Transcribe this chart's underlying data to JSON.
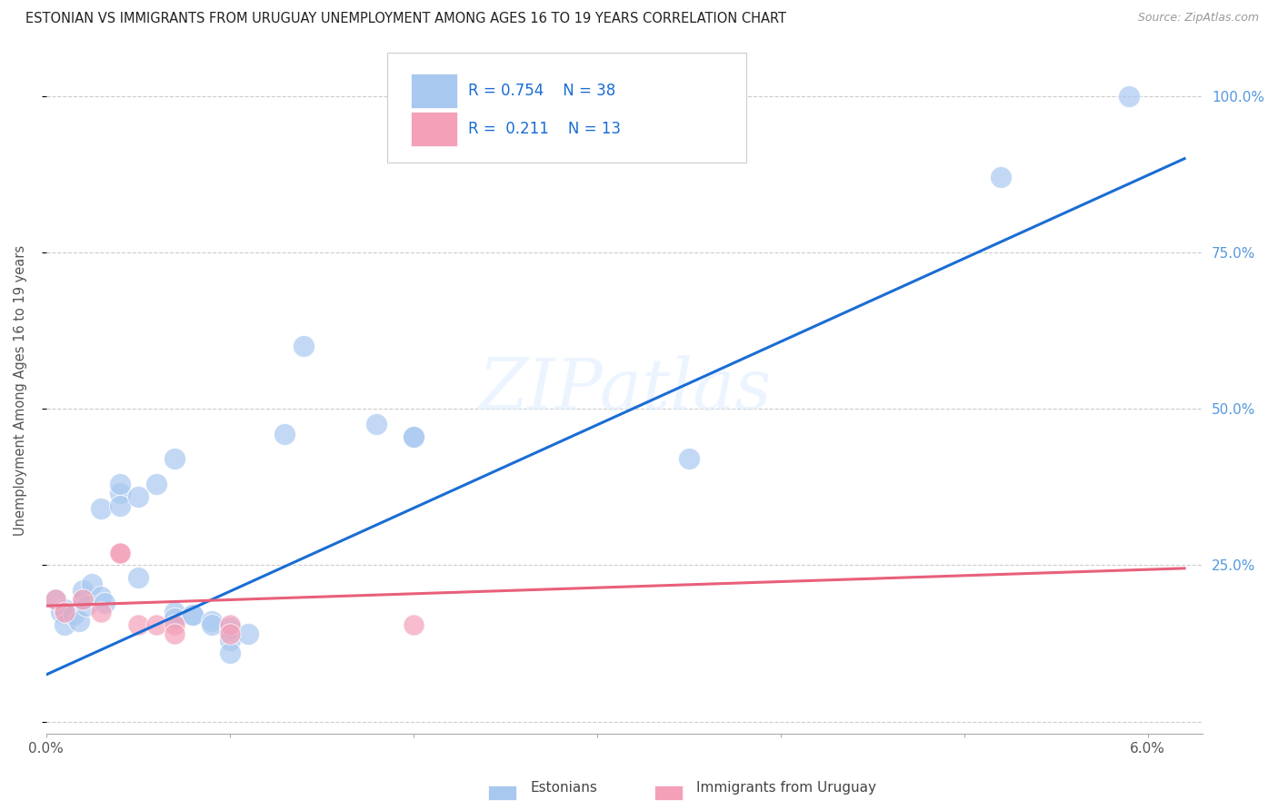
{
  "title": "ESTONIAN VS IMMIGRANTS FROM URUGUAY UNEMPLOYMENT AMONG AGES 16 TO 19 YEARS CORRELATION CHART",
  "source": "Source: ZipAtlas.com",
  "ylabel": "Unemployment Among Ages 16 to 19 years",
  "legend_label1": "Estonians",
  "legend_label2": "Immigrants from Uruguay",
  "r1": 0.754,
  "n1": 38,
  "r2": 0.211,
  "n2": 13,
  "color_blue": "#a8c8f0",
  "color_pink": "#f4a0b8",
  "line_color_blue": "#1a6dd4",
  "line_color_pink": "#e8607a",
  "watermark": "ZIPatlas",
  "blue_points": [
    [
      0.0005,
      0.195
    ],
    [
      0.0008,
      0.175
    ],
    [
      0.001,
      0.18
    ],
    [
      0.001,
      0.155
    ],
    [
      0.0015,
      0.17
    ],
    [
      0.0018,
      0.16
    ],
    [
      0.002,
      0.195
    ],
    [
      0.002,
      0.21
    ],
    [
      0.0022,
      0.185
    ],
    [
      0.0025,
      0.22
    ],
    [
      0.003,
      0.34
    ],
    [
      0.003,
      0.2
    ],
    [
      0.0032,
      0.19
    ],
    [
      0.004,
      0.365
    ],
    [
      0.004,
      0.38
    ],
    [
      0.004,
      0.345
    ],
    [
      0.005,
      0.36
    ],
    [
      0.005,
      0.23
    ],
    [
      0.006,
      0.38
    ],
    [
      0.007,
      0.42
    ],
    [
      0.007,
      0.175
    ],
    [
      0.007,
      0.165
    ],
    [
      0.008,
      0.17
    ],
    [
      0.008,
      0.17
    ],
    [
      0.009,
      0.16
    ],
    [
      0.009,
      0.155
    ],
    [
      0.01,
      0.15
    ],
    [
      0.01,
      0.13
    ],
    [
      0.01,
      0.11
    ],
    [
      0.011,
      0.14
    ],
    [
      0.013,
      0.46
    ],
    [
      0.014,
      0.6
    ],
    [
      0.018,
      0.475
    ],
    [
      0.02,
      0.455
    ],
    [
      0.02,
      0.455
    ],
    [
      0.035,
      0.42
    ],
    [
      0.052,
      0.87
    ],
    [
      0.059,
      1.0
    ]
  ],
  "pink_points": [
    [
      0.0005,
      0.195
    ],
    [
      0.001,
      0.175
    ],
    [
      0.002,
      0.195
    ],
    [
      0.003,
      0.175
    ],
    [
      0.004,
      0.27
    ],
    [
      0.004,
      0.27
    ],
    [
      0.005,
      0.155
    ],
    [
      0.006,
      0.155
    ],
    [
      0.007,
      0.155
    ],
    [
      0.007,
      0.14
    ],
    [
      0.01,
      0.155
    ],
    [
      0.01,
      0.14
    ],
    [
      0.02,
      0.155
    ]
  ],
  "blue_line": {
    "x0": 0.0,
    "y0": 0.075,
    "x1": 0.062,
    "y1": 0.9
  },
  "pink_line": {
    "x0": 0.0,
    "y0": 0.185,
    "x1": 0.062,
    "y1": 0.245
  },
  "xlim": [
    0.0,
    0.063
  ],
  "ylim": [
    -0.02,
    1.08
  ],
  "yticks": [
    0.0,
    0.25,
    0.5,
    0.75,
    1.0
  ],
  "ytick_labels_right": [
    "",
    "25.0%",
    "50.0%",
    "75.0%",
    "100.0%"
  ],
  "right_ytick_color": "#5599dd",
  "background_color": "#ffffff",
  "grid_color": "#cccccc"
}
